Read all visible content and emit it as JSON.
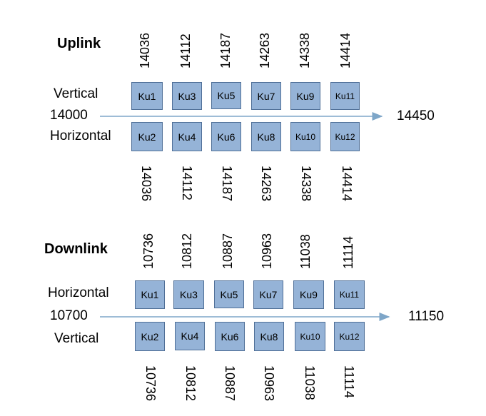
{
  "uplink": {
    "title": "Uplink",
    "pol_top": "Vertical",
    "pol_bottom": "Horizontal",
    "start": "14000",
    "end": "14450",
    "freqs_top": [
      "14036",
      "14112",
      "14187",
      "14263",
      "14338",
      "14414"
    ],
    "freqs_bottom": [
      "14036",
      "14112",
      "14187",
      "14263",
      "14338",
      "14414"
    ],
    "boxes_top": [
      "Ku1",
      "Ku3",
      "Ku5",
      "Ku7",
      "Ku9",
      "Ku11"
    ],
    "boxes_bottom": [
      "Ku2",
      "Ku4",
      "Ku6",
      "Ku8",
      "Ku10",
      "Ku12"
    ]
  },
  "downlink": {
    "title": "Downlink",
    "pol_top": "Horizontal",
    "pol_bottom": "Vertical",
    "start": "10700",
    "end": "11150",
    "freqs_top": [
      "10736",
      "10812",
      "10887",
      "10963",
      "11038",
      "11114"
    ],
    "freqs_bottom": [
      "10736",
      "10812",
      "10887",
      "10963",
      "11038",
      "11114"
    ],
    "boxes_top": [
      "Ku1",
      "Ku3",
      "Ku5",
      "Ku7",
      "Ku9",
      "Ku11"
    ],
    "boxes_bottom": [
      "Ku2",
      "Ku4",
      "Ku6",
      "Ku8",
      "Ku10",
      "Ku12"
    ]
  },
  "colors": {
    "box_fill": "#95b3d7",
    "box_border": "#4f6f97",
    "arrow": "#7ea6c8"
  }
}
